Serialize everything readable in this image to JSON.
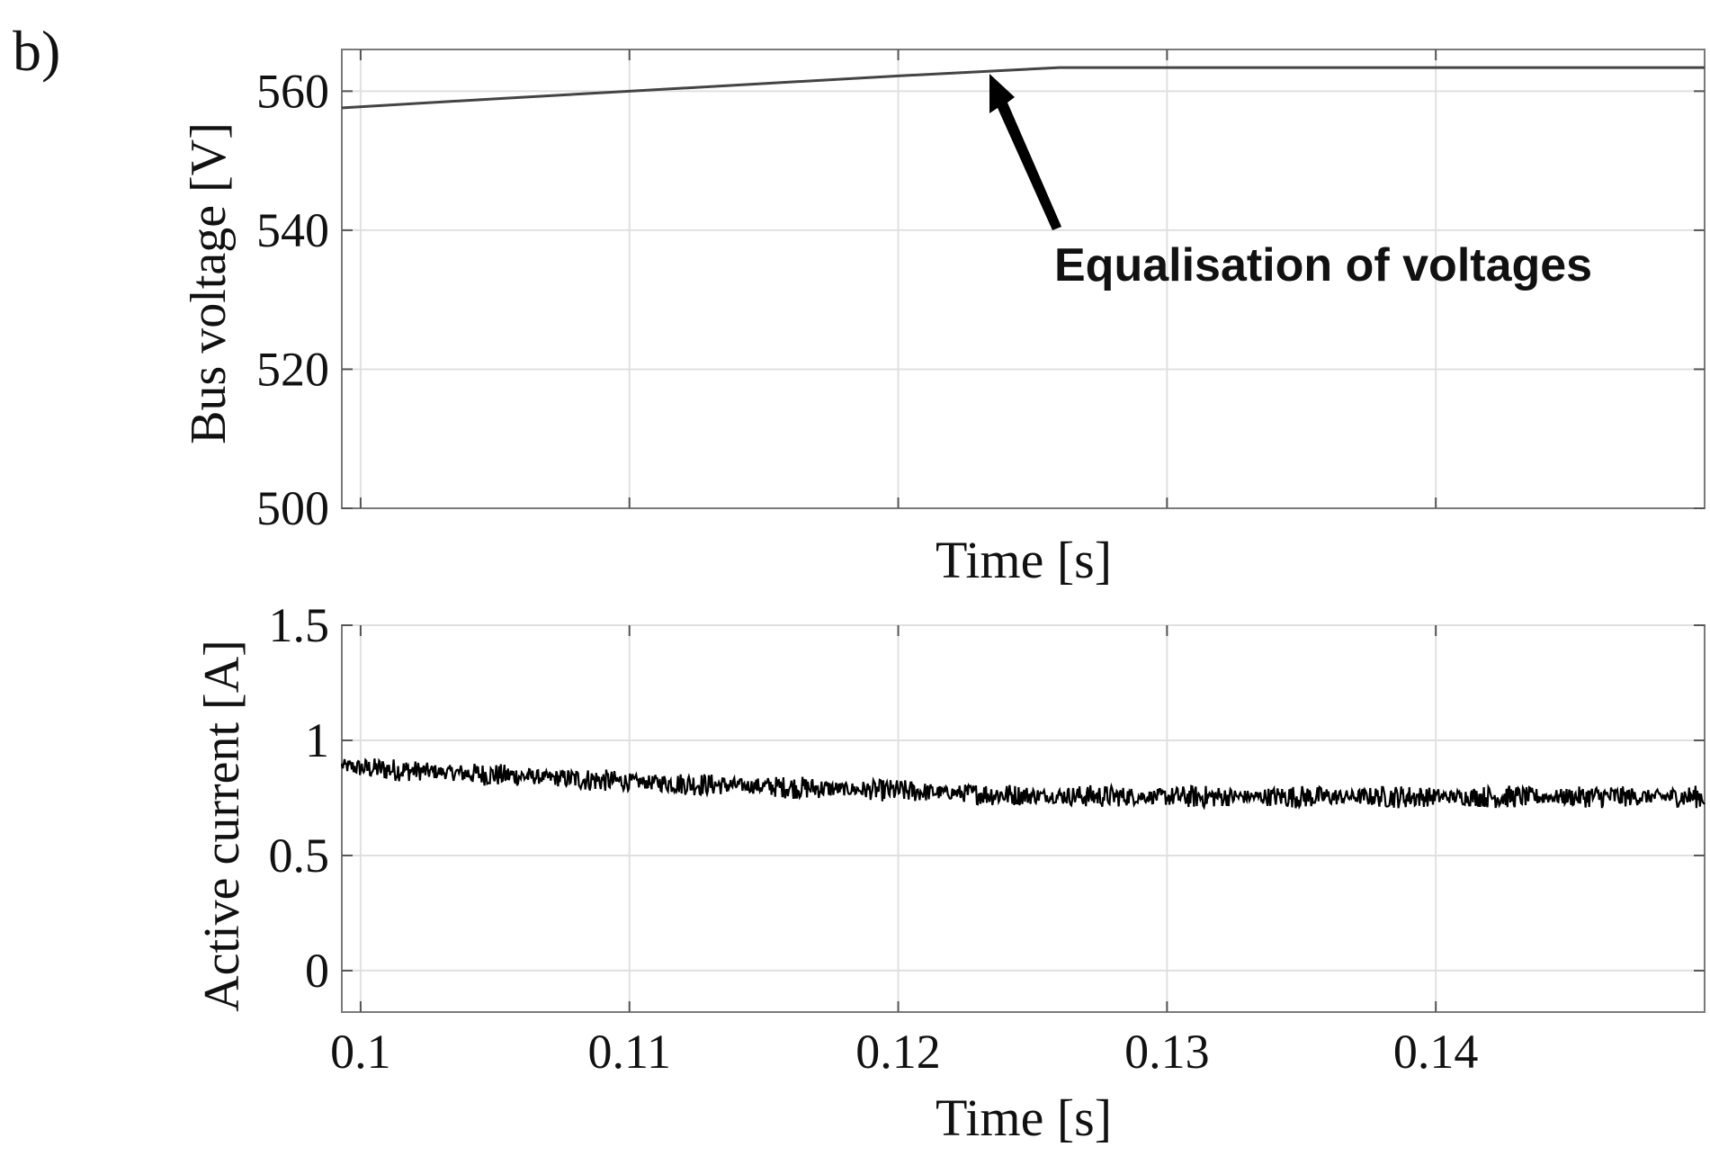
{
  "panel_label": "b)",
  "chart_data": [
    {
      "type": "line",
      "title": "",
      "xlabel": "Time [s]",
      "ylabel": "Bus voltage [V]",
      "xlim": [
        0.0993,
        0.15
      ],
      "ylim": [
        500,
        566
      ],
      "yticks": [
        500,
        520,
        540,
        560
      ],
      "ytick_labels": [
        "500",
        "520",
        "540",
        "560"
      ],
      "xticks": [
        0.1,
        0.11,
        0.12,
        0.13,
        0.14
      ],
      "xtick_labels": [],
      "grid": true,
      "series": [
        {
          "x": [
            0.0993,
            0.105,
            0.11,
            0.115,
            0.12,
            0.1235,
            0.126,
            0.13,
            0.135,
            0.14,
            0.145,
            0.15
          ],
          "y": [
            557.6,
            558.9,
            560.0,
            561.1,
            562.2,
            562.9,
            563.4,
            563.4,
            563.4,
            563.4,
            563.4,
            563.4
          ],
          "color": "#444444"
        }
      ],
      "annotations": [
        {
          "text": "Equalisation of voltages",
          "arrow_to": [
            0.1237,
            563.0
          ]
        }
      ]
    },
    {
      "type": "line",
      "title": "",
      "xlabel": "Time [s]",
      "ylabel": "Active current [A]",
      "xlim": [
        0.0993,
        0.15
      ],
      "ylim": [
        -0.18,
        1.5
      ],
      "yticks": [
        0,
        0.5,
        1,
        1.5
      ],
      "ytick_labels": [
        "0",
        "0.5",
        "1",
        "1.5"
      ],
      "xticks": [
        0.1,
        0.11,
        0.12,
        0.13,
        0.14
      ],
      "xtick_labels": [
        "0.1",
        "0.11",
        "0.12",
        "0.13",
        "0.14"
      ],
      "grid": true,
      "series": [
        {
          "description_visible": "noisy signal",
          "x": [
            0.0993,
            0.1,
            0.105,
            0.11,
            0.115,
            0.12,
            0.125,
            0.13,
            0.135,
            0.14,
            0.145,
            0.15
          ],
          "y": [
            0.89,
            0.88,
            0.85,
            0.82,
            0.8,
            0.78,
            0.76,
            0.755,
            0.755,
            0.755,
            0.755,
            0.755
          ],
          "noise_amplitude": 0.05,
          "color": "#000000"
        }
      ]
    }
  ]
}
